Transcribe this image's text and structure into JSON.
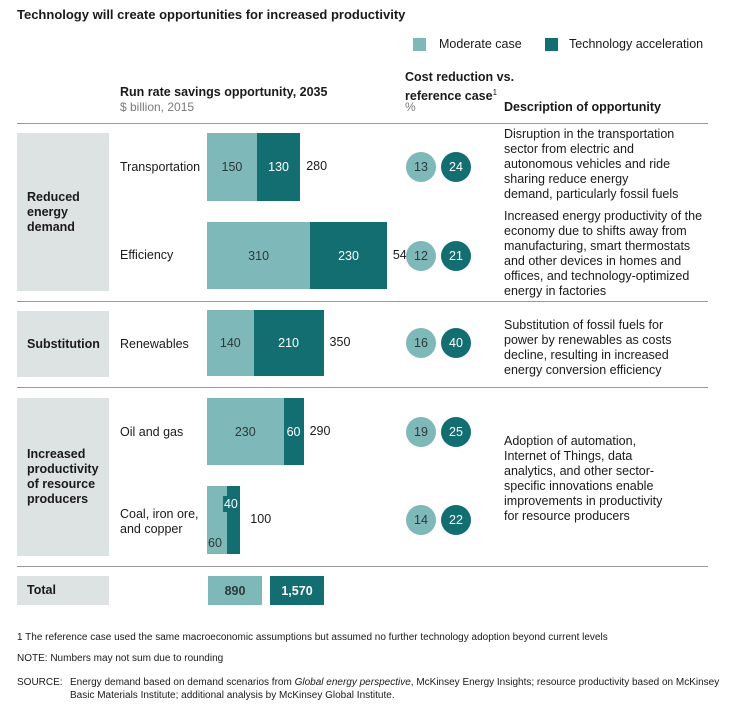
{
  "title": "Technology will create opportunities for increased productivity",
  "legend": {
    "moderate": "Moderate case",
    "acceleration": "Technology acceleration"
  },
  "colors": {
    "moderate": "#7fb8b8",
    "acceleration": "#136e72",
    "group_bg": "#dde2e2"
  },
  "headers": {
    "savings": "Run rate savings opportunity, 2035",
    "savings_unit": "$ billion, 2015",
    "cost_line1": "Cost reduction vs.",
    "cost_line2": "reference case",
    "cost_sup": "1",
    "cost_unit": "%",
    "description": "Description of opportunity"
  },
  "groups": [
    {
      "name": "Reduced energy demand",
      "lines": [
        "Reduced",
        "energy",
        "demand"
      ]
    },
    {
      "name": "Substitution",
      "lines": [
        "Substitution"
      ]
    },
    {
      "name": "Increased productivity of resource producers",
      "lines": [
        "Increased",
        "productivity",
        "of resource",
        "producers"
      ]
    }
  ],
  "chart_data": {
    "type": "bar",
    "stacked": true,
    "orientation": "horizontal",
    "title": "Run rate savings opportunity, 2035",
    "unit": "$ billion, 2015",
    "categories": [
      "Transportation",
      "Efficiency",
      "Renewables",
      "Oil and gas",
      "Coal, iron ore, and copper"
    ],
    "series": [
      {
        "name": "Moderate case",
        "values": [
          150,
          310,
          140,
          230,
          60
        ]
      },
      {
        "name": "Technology acceleration",
        "values": [
          130,
          230,
          210,
          60,
          40
        ]
      }
    ],
    "totals": [
      280,
      540,
      350,
      290,
      100
    ],
    "cost_reduction_pct": {
      "moderate": [
        13,
        12,
        16,
        19,
        14
      ],
      "acceleration": [
        24,
        21,
        40,
        25,
        22
      ]
    },
    "grand_total": {
      "moderate": "890",
      "acceleration": "1,570"
    }
  },
  "row_labels": [
    [
      "Transportation"
    ],
    [
      "Efficiency"
    ],
    [
      "Renewables"
    ],
    [
      "Oil and gas"
    ],
    [
      "Coal, iron ore,",
      "and copper"
    ]
  ],
  "descriptions": [
    [
      "Disruption in the transportation",
      "sector from electric and",
      "autonomous vehicles and ride",
      "sharing reduce energy",
      "demand, particularly fossil fuels"
    ],
    [
      "Increased energy productivity of the",
      "economy due to shifts away from",
      "manufacturing, smart thermostats",
      "and other devices in homes and",
      "offices, and technology-optimized",
      "energy in factories"
    ],
    [
      "Substitution of fossil fuels for",
      "power by renewables as costs",
      "decline, resulting in increased",
      "energy conversion efficiency"
    ],
    [
      "Adoption of automation,",
      "Internet of Things, data",
      "analytics, and other sector-",
      "specific innovations enable",
      "improvements in productivity",
      "for resource producers"
    ]
  ],
  "total_label": "Total",
  "footnote": "1 The reference case used the same macroeconomic assumptions but assumed no further technology adoption beyond current levels",
  "note": "NOTE: Numbers may not sum due to rounding",
  "source": {
    "label": "SOURCE:",
    "part1": "Energy demand based on demand scenarios from ",
    "italic": "Global energy perspective",
    "part2": ", McKinsey Energy Insights; resource productivity based on McKinsey",
    "line2": "Basic Materials Institute; additional analysis by McKinsey Global Institute."
  }
}
